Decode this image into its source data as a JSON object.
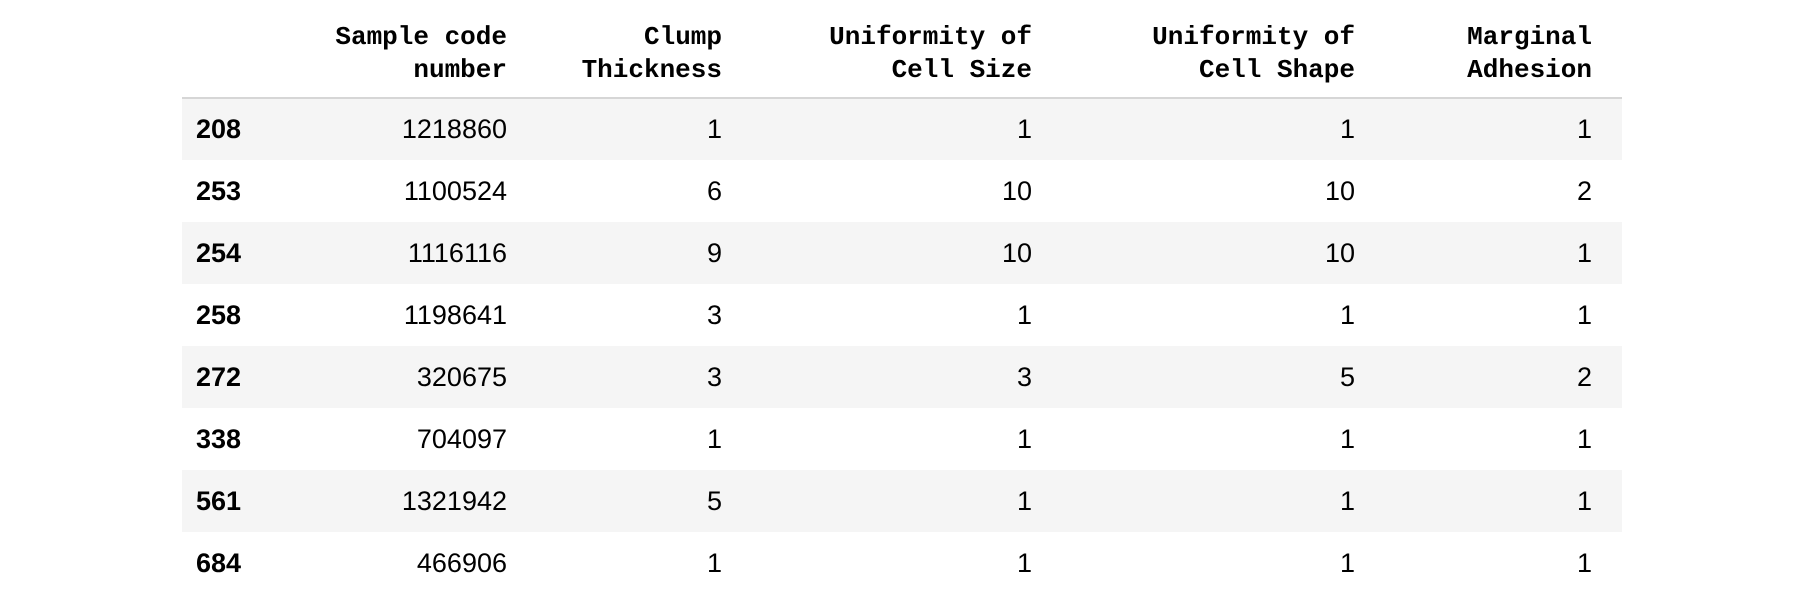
{
  "table": {
    "headers": [
      {
        "line1": "",
        "line2": ""
      },
      {
        "line1": "Sample code",
        "line2": "number"
      },
      {
        "line1": "Clump",
        "line2": "Thickness"
      },
      {
        "line1": "Uniformity of",
        "line2": "Cell Size"
      },
      {
        "line1": "Uniformity of",
        "line2": "Cell Shape"
      },
      {
        "line1": "Marginal",
        "line2": "Adhesion"
      }
    ],
    "rows": [
      {
        "index": "208",
        "cells": [
          "1218860",
          "1",
          "1",
          "1",
          "1"
        ]
      },
      {
        "index": "253",
        "cells": [
          "1100524",
          "6",
          "10",
          "10",
          "2"
        ]
      },
      {
        "index": "254",
        "cells": [
          "1116116",
          "9",
          "10",
          "10",
          "1"
        ]
      },
      {
        "index": "258",
        "cells": [
          "1198641",
          "3",
          "1",
          "1",
          "1"
        ]
      },
      {
        "index": "272",
        "cells": [
          "320675",
          "3",
          "3",
          "5",
          "2"
        ]
      },
      {
        "index": "338",
        "cells": [
          "704097",
          "1",
          "1",
          "1",
          "1"
        ]
      },
      {
        "index": "561",
        "cells": [
          "1321942",
          "5",
          "1",
          "1",
          "1"
        ]
      },
      {
        "index": "684",
        "cells": [
          "466906",
          "1",
          "1",
          "1",
          "1"
        ]
      }
    ]
  },
  "colors": {
    "stripe": "#f5f5f5",
    "header_rule": "#d6d6d6",
    "text": "#000000"
  }
}
